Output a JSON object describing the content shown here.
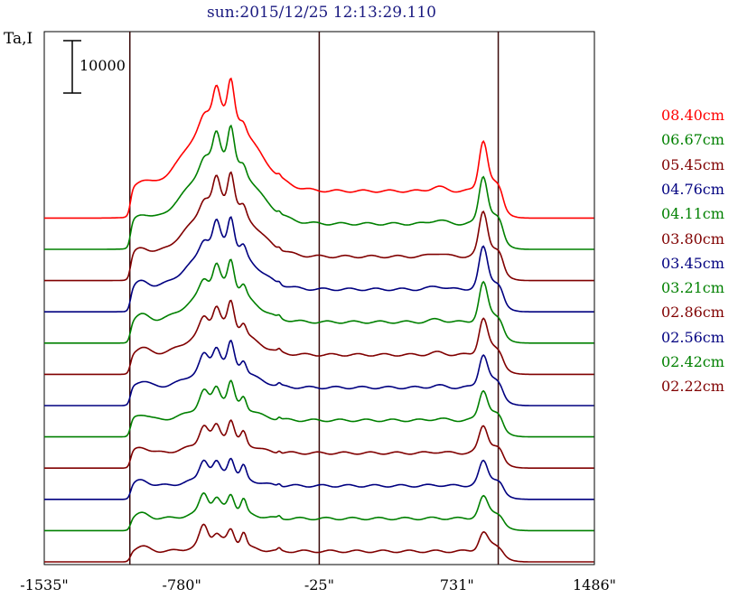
{
  "title": "sun:2015/12/25 12:13:29.110",
  "ylabel": "Ta,I",
  "scale_bar_label": "10000",
  "chart_data": {
    "type": "line",
    "x_tick_labels": [
      "-1535\"",
      "-780\"",
      "-25\"",
      "731\"",
      "1486\""
    ],
    "x_ticks": [
      -1535,
      -780,
      -25,
      731,
      1486
    ],
    "xlim": [
      -1535,
      1486
    ],
    "vertical_markers": [
      -1065,
      -25,
      958
    ],
    "grid": false,
    "legend_position": "right",
    "series": [
      {
        "name": "08.40cm",
        "color": "#ff0000"
      },
      {
        "name": "06.67cm",
        "color": "#008000"
      },
      {
        "name": "05.45cm",
        "color": "#800000"
      },
      {
        "name": "04.76cm",
        "color": "#000080"
      },
      {
        "name": "04.11cm",
        "color": "#008000"
      },
      {
        "name": "03.80cm",
        "color": "#800000"
      },
      {
        "name": "03.45cm",
        "color": "#000080"
      },
      {
        "name": "03.21cm",
        "color": "#008000"
      },
      {
        "name": "02.86cm",
        "color": "#800000"
      },
      {
        "name": "02.56cm",
        "color": "#000080"
      },
      {
        "name": "02.42cm",
        "color": "#008000"
      },
      {
        "name": "02.22cm",
        "color": "#800000"
      }
    ]
  }
}
